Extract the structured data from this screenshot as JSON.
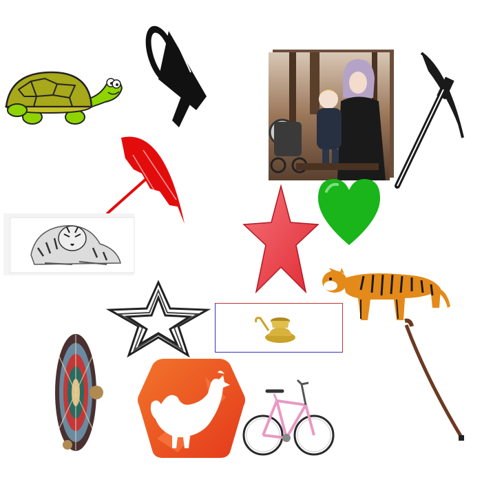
{
  "canvas": {
    "background": "#ffffff"
  },
  "items": [
    {
      "name": "turtle",
      "icon": "turtle-icon",
      "colors": {
        "shell": "#a7a81a",
        "body": "#8fd400"
      }
    },
    {
      "name": "megaphone",
      "icon": "megaphone-icon",
      "colors": {
        "fill": "#111111"
      }
    },
    {
      "name": "family-photo-canvas",
      "icon": "photo-icon",
      "description_visible": false
    },
    {
      "name": "pickaxe",
      "icon": "pickaxe-icon",
      "colors": {
        "fill": "#1a1a1a"
      }
    },
    {
      "name": "umbrella",
      "icon": "umbrella-icon",
      "colors": {
        "fill": "#e30c0c"
      }
    },
    {
      "name": "tiger-sketch",
      "icon": "tiger-sketch-icon"
    },
    {
      "name": "red-star",
      "icon": "star-icon",
      "colors": {
        "fill": "#ef3d45"
      }
    },
    {
      "name": "green-heart",
      "icon": "heart-icon",
      "colors": {
        "fill": "#19b51a"
      }
    },
    {
      "name": "tiger",
      "icon": "tiger-icon",
      "colors": {
        "fur": "#e38a1b"
      }
    },
    {
      "name": "outline-star",
      "icon": "star-outline-icon",
      "colors": {
        "stroke": "#222222"
      }
    },
    {
      "name": "brass-lamp",
      "icon": "lamp-icon",
      "colors": {
        "metal": "#c9a22a"
      }
    },
    {
      "name": "walking-stick",
      "icon": "walking-stick-icon",
      "colors": {
        "wood": "#6b3a22"
      }
    },
    {
      "name": "mandala-wheel",
      "icon": "mandala-icon"
    },
    {
      "name": "chicken-badge",
      "icon": "chicken-icon",
      "colors": {
        "badge": "#ef5a22"
      }
    },
    {
      "name": "bicycle",
      "icon": "bicycle-icon",
      "colors": {
        "frame": "#e79ac3"
      }
    }
  ]
}
